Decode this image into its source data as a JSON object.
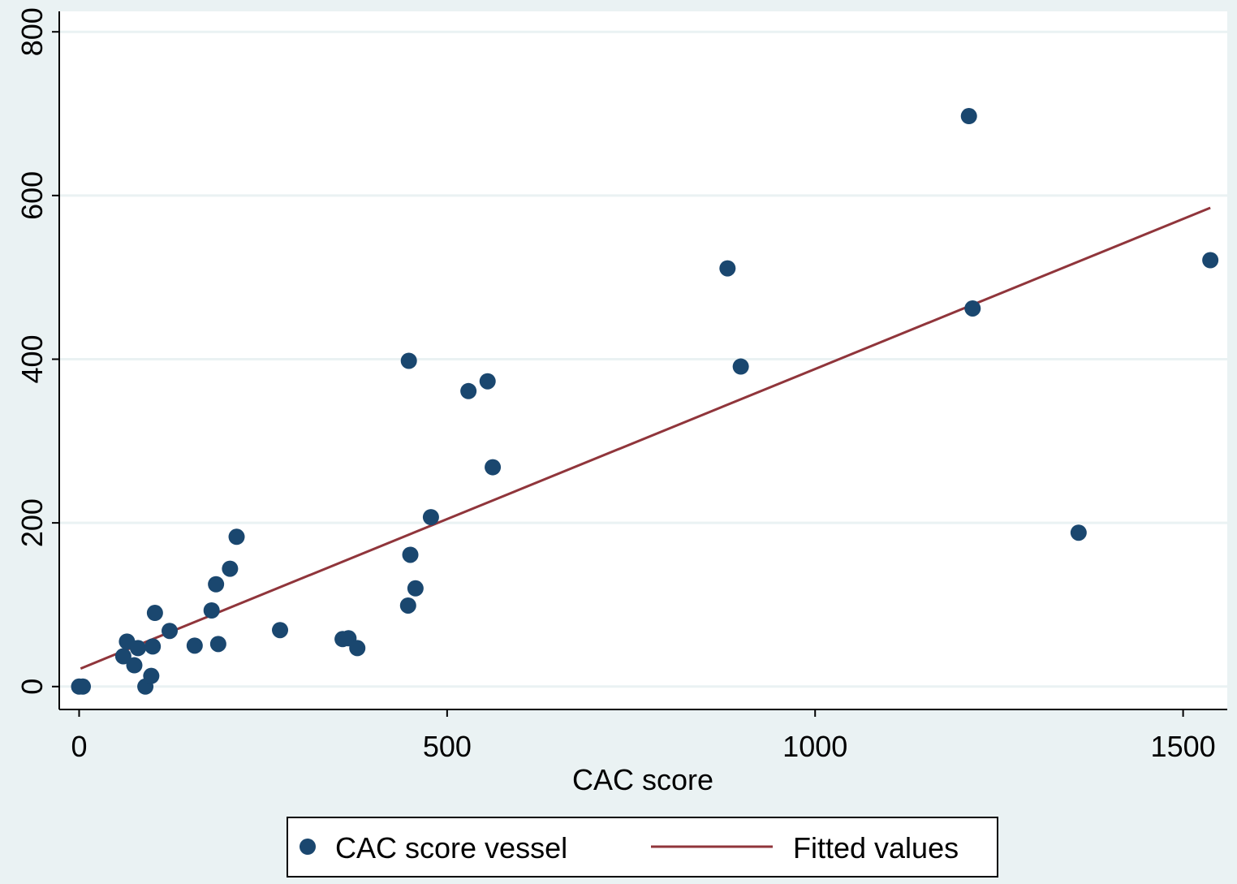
{
  "chart_data": {
    "type": "scatter",
    "xlabel": "CAC score",
    "ylabel": "",
    "xlim": [
      -27,
      1560
    ],
    "ylim": [
      -28,
      825
    ],
    "x_ticks": [
      0,
      500,
      1000,
      1500
    ],
    "y_ticks": [
      0,
      200,
      400,
      600,
      800
    ],
    "grid": "horizontal",
    "legend_position": "bottom",
    "colors": {
      "points": "#1a476f",
      "fit_line": "#90353b",
      "background": "#eaf2f3",
      "plot_area": "#ffffff",
      "grid": "#eaf2f3"
    },
    "series": [
      {
        "name": "CAC score vessel",
        "kind": "scatter",
        "points": [
          {
            "x": 0,
            "y": 0
          },
          {
            "x": 5,
            "y": 0
          },
          {
            "x": 60,
            "y": 37
          },
          {
            "x": 65,
            "y": 55
          },
          {
            "x": 75,
            "y": 26
          },
          {
            "x": 80,
            "y": 47
          },
          {
            "x": 90,
            "y": 0
          },
          {
            "x": 98,
            "y": 13
          },
          {
            "x": 100,
            "y": 49
          },
          {
            "x": 103,
            "y": 90
          },
          {
            "x": 123,
            "y": 68
          },
          {
            "x": 157,
            "y": 50
          },
          {
            "x": 180,
            "y": 93
          },
          {
            "x": 186,
            "y": 125
          },
          {
            "x": 189,
            "y": 52
          },
          {
            "x": 205,
            "y": 144
          },
          {
            "x": 214,
            "y": 183
          },
          {
            "x": 273,
            "y": 69
          },
          {
            "x": 358,
            "y": 58
          },
          {
            "x": 366,
            "y": 59
          },
          {
            "x": 378,
            "y": 47
          },
          {
            "x": 447,
            "y": 99
          },
          {
            "x": 448,
            "y": 398
          },
          {
            "x": 450,
            "y": 161
          },
          {
            "x": 457,
            "y": 120
          },
          {
            "x": 478,
            "y": 207
          },
          {
            "x": 529,
            "y": 361
          },
          {
            "x": 555,
            "y": 373
          },
          {
            "x": 562,
            "y": 268
          },
          {
            "x": 881,
            "y": 511
          },
          {
            "x": 899,
            "y": 391
          },
          {
            "x": 1209,
            "y": 697
          },
          {
            "x": 1214,
            "y": 462
          },
          {
            "x": 1358,
            "y": 188
          },
          {
            "x": 1537,
            "y": 521
          }
        ]
      },
      {
        "name": "Fitted values",
        "kind": "line",
        "points": [
          {
            "x": 2,
            "y": 22
          },
          {
            "x": 1537,
            "y": 585
          }
        ]
      }
    ]
  }
}
